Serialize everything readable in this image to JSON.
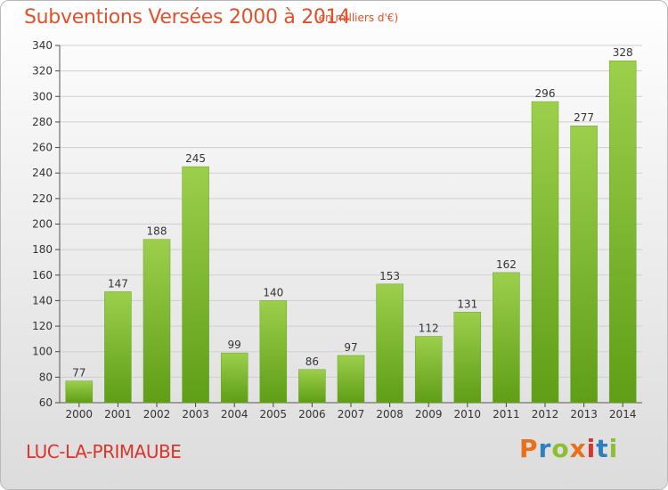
{
  "header": {
    "title": "Subventions Versées 2000 à 2014",
    "subtitle": "(en milliers d'€)"
  },
  "footer": {
    "commune": "LUC-LA-PRIMAUBE",
    "logo_text": "Proxiti",
    "logo_colors": [
      "#e8701a",
      "#2e7fc1",
      "#8cbf2d",
      "#e8701a",
      "#d9342b",
      "#2e7fc1",
      "#8cbf2d"
    ]
  },
  "colors": {
    "bar_light": "#9ccf4c",
    "bar_dark": "#5f9e16",
    "title": "#e4502a",
    "commune": "#d9352b"
  },
  "chart_data": {
    "type": "bar",
    "title": "Subventions Versées 2000 à 2014",
    "subtitle": "(en milliers d'€)",
    "xlabel": "",
    "ylabel": "",
    "categories": [
      "2000",
      "2001",
      "2002",
      "2003",
      "2004",
      "2005",
      "2006",
      "2007",
      "2008",
      "2009",
      "2010",
      "2011",
      "2012",
      "2013",
      "2014"
    ],
    "values": [
      77,
      147,
      188,
      245,
      99,
      140,
      86,
      97,
      153,
      112,
      131,
      162,
      296,
      277,
      328
    ],
    "ylim": [
      60,
      340
    ],
    "yticks": [
      60,
      80,
      100,
      120,
      140,
      160,
      180,
      200,
      220,
      240,
      260,
      280,
      300,
      320,
      340
    ],
    "grid": true,
    "legend": "none"
  }
}
